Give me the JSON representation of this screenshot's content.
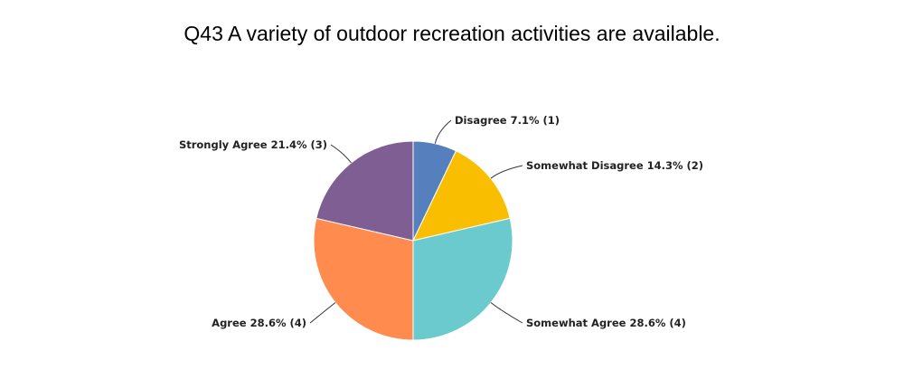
{
  "chart_data": {
    "type": "pie",
    "title": "Q43 A variety of outdoor recreation activities are available.",
    "slices": [
      {
        "name": "Disagree",
        "percent": 7.1,
        "count": 1,
        "color": "#5580BD",
        "label": "Disagree 7.1% (1)"
      },
      {
        "name": "Somewhat Disagree",
        "percent": 14.3,
        "count": 2,
        "color": "#FABE00",
        "label": "Somewhat Disagree 14.3% (2)"
      },
      {
        "name": "Somewhat Agree",
        "percent": 28.6,
        "count": 4,
        "color": "#6BCACE",
        "label": "Somewhat Agree 28.6% (4)"
      },
      {
        "name": "Agree",
        "percent": 28.6,
        "count": 4,
        "color": "#FF8B4F",
        "label": "Agree 28.6% (4)"
      },
      {
        "name": "Strongly Agree",
        "percent": 21.4,
        "count": 3,
        "color": "#7F5F93",
        "label": "Strongly Agree 21.4% (3)"
      }
    ]
  }
}
